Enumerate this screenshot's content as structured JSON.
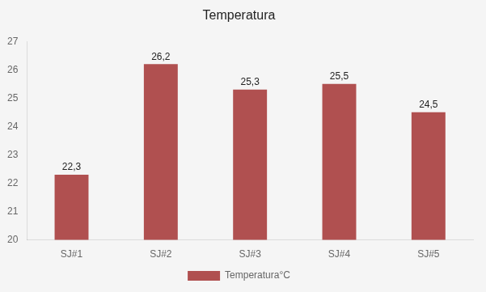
{
  "chart_data": {
    "type": "bar",
    "title": "Temperatura",
    "categories": [
      "SJ#1",
      "SJ#2",
      "SJ#3",
      "SJ#4",
      "SJ#5"
    ],
    "series": [
      {
        "name": "Temperatura°C",
        "color": "#b05050",
        "values": [
          22.3,
          26.2,
          25.3,
          25.5,
          24.5
        ],
        "value_labels": [
          "22,3",
          "26,2",
          "25,3",
          "25,5",
          "24,5"
        ]
      }
    ],
    "ylim": [
      20,
      27
    ],
    "yticks": [
      20,
      21,
      22,
      23,
      24,
      25,
      26,
      27
    ],
    "grid": false,
    "legend": "bottom",
    "data_labels": true
  }
}
